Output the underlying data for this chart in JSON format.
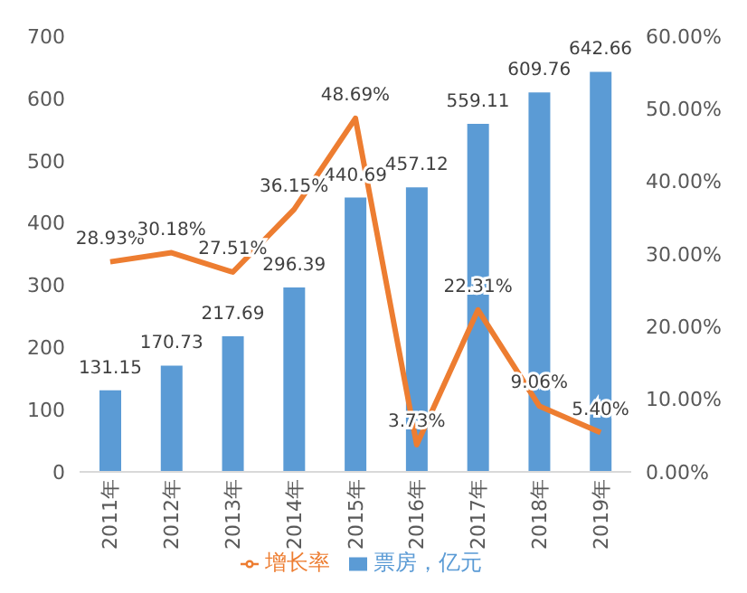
{
  "chart_data": {
    "type": "bar",
    "categories": [
      "2011年",
      "2012年",
      "2013年",
      "2014年",
      "2015年",
      "2016年",
      "2017年",
      "2018年",
      "2019年"
    ],
    "series": [
      {
        "name": "票房，亿元",
        "color": "#5b9bd5",
        "values": [
          131.15,
          170.73,
          217.69,
          296.39,
          440.69,
          457.12,
          559.11,
          609.76,
          642.66
        ],
        "value_labels": [
          "131.15",
          "170.73",
          "217.69",
          "296.39",
          "440.69",
          "457.12",
          "559.11",
          "609.76",
          "642.66"
        ]
      },
      {
        "name": "增长率",
        "type": "line",
        "axis": "y2",
        "color": "#ed7d31",
        "marker": "none",
        "values": [
          28.93,
          30.18,
          27.51,
          36.15,
          48.69,
          3.73,
          22.31,
          9.06,
          5.4
        ],
        "value_labels": [
          "28.93%",
          "30.18%",
          "27.51%",
          "36.15%",
          "48.69%",
          "3.73%",
          "22.31%",
          "9.06%",
          "5.40%"
        ]
      }
    ],
    "ylim": [
      0,
      700
    ],
    "yticks": [
      0,
      100,
      200,
      300,
      400,
      500,
      600,
      700
    ],
    "y2lim": [
      0,
      60
    ],
    "y2ticks": [
      {
        "value": 0,
        "label": "0.00%"
      },
      {
        "value": 10,
        "label": "10.00%"
      },
      {
        "value": 20,
        "label": "20.00%"
      },
      {
        "value": 30,
        "label": "30.00%"
      },
      {
        "value": 40,
        "label": "40.00%"
      },
      {
        "value": 50,
        "label": "50.00%"
      },
      {
        "value": 60,
        "label": "60.00%"
      }
    ],
    "grid": false,
    "legend": "bottom"
  }
}
